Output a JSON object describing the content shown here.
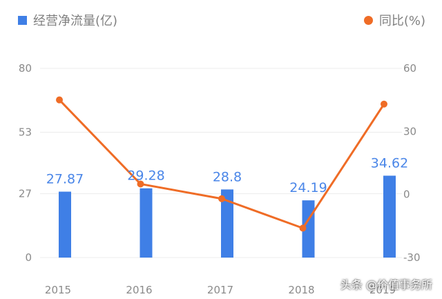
{
  "colors": {
    "bar": "#3f7fe6",
    "line": "#ef6c26",
    "axis_text": "#8a8a8a",
    "grid": "#ececec",
    "bar_label": "#4a86e8"
  },
  "legend": {
    "bar_label": "经营净流量(亿)",
    "line_label": "同比(%)"
  },
  "watermark": "头条 @价值事务所",
  "chart_data": {
    "type": "bar",
    "categories": [
      "2015",
      "2016",
      "2017",
      "2018",
      "2019"
    ],
    "series": [
      {
        "name": "经营净流量(亿)",
        "type": "bar",
        "axis": "left",
        "values": [
          27.87,
          29.28,
          28.8,
          24.19,
          34.62
        ],
        "labels": [
          "27.87",
          "29.28",
          "28.8",
          "24.19",
          "34.62"
        ]
      },
      {
        "name": "同比(%)",
        "type": "line",
        "axis": "right",
        "values": [
          45,
          5,
          -2,
          -16,
          43
        ]
      }
    ],
    "y_left": {
      "ylim": [
        0,
        80
      ],
      "ticks": [
        "0",
        "27",
        "53",
        "80"
      ]
    },
    "y_right": {
      "ylim": [
        -30,
        60
      ],
      "ticks": [
        "-30",
        "0",
        "30",
        "60"
      ]
    },
    "grid": true,
    "legend_position": "top"
  }
}
